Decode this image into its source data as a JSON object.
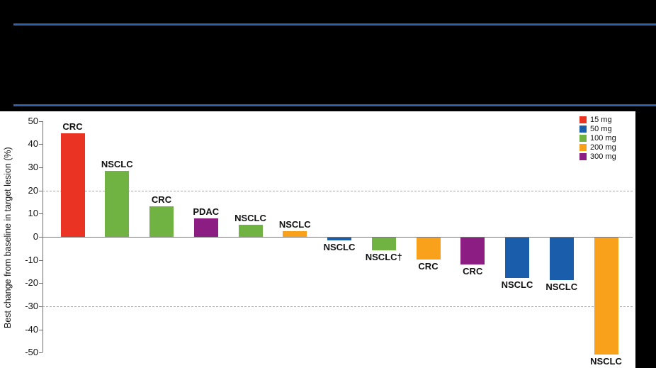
{
  "page": {
    "background_color": "#000000",
    "divider_color": "#2E5FA8",
    "header_text": ""
  },
  "chart_data": {
    "type": "bar",
    "variant": "waterfall",
    "title": "",
    "xlabel": "",
    "ylabel": "Best change from baseline in target lesion (%)",
    "ylim": [
      -50,
      50
    ],
    "yticks": [
      50,
      40,
      30,
      20,
      10,
      0,
      -10,
      -20,
      -30,
      -40,
      -50
    ],
    "reference_lines_dashed": [
      20,
      -30
    ],
    "grid": "off",
    "legend": {
      "position": "top-right",
      "items": [
        {
          "label": "15 mg",
          "color": "#EA3323"
        },
        {
          "label": "50 mg",
          "color": "#1A5DAB"
        },
        {
          "label": "100 mg",
          "color": "#71B343"
        },
        {
          "label": "200 mg",
          "color": "#F9A11B"
        },
        {
          "label": "300 mg",
          "color": "#8C1D82"
        }
      ]
    },
    "bars": [
      {
        "label": "CRC",
        "dose": "15 mg",
        "value": 44.6
      },
      {
        "label": "NSCLC",
        "dose": "100 mg",
        "value": 28.6
      },
      {
        "label": "CRC",
        "dose": "100 mg",
        "value": 13.2
      },
      {
        "label": "PDAC",
        "dose": "300 mg",
        "value": 8.1
      },
      {
        "label": "NSCLC",
        "dose": "100 mg",
        "value": 5.2
      },
      {
        "label": "NSCLC",
        "dose": "200 mg",
        "value": 2.3
      },
      {
        "label": "NSCLC",
        "dose": "50 mg",
        "value": -1.1
      },
      {
        "label": "NSCLC†",
        "dose": "100 mg",
        "value": -5.6
      },
      {
        "label": "CRC",
        "dose": "200 mg",
        "value": -9.5
      },
      {
        "label": "CRC",
        "dose": "300 mg",
        "value": -11.7
      },
      {
        "label": "NSCLC",
        "dose": "50 mg",
        "value": -17.5
      },
      {
        "label": "NSCLC",
        "dose": "50 mg",
        "value": -18.5
      },
      {
        "label": "NSCLC",
        "dose": "200 mg",
        "value": -50.6
      }
    ]
  }
}
